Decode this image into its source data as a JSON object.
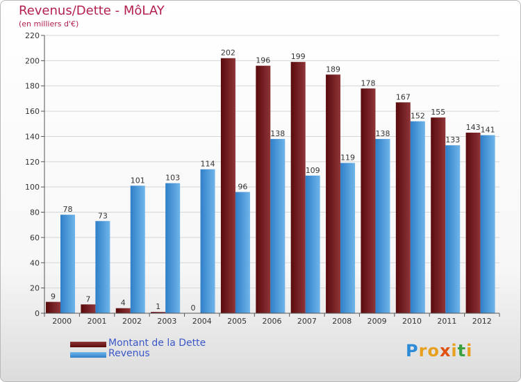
{
  "title": "Revenus/Dette - MôLAY",
  "subtitle": "(en milliers d'€)",
  "logo": {
    "text": "Proxiti",
    "letters": [
      "P",
      "r",
      "o",
      "x",
      "i",
      "t",
      "i"
    ],
    "colors": [
      "#2e8bd8",
      "#e8a020",
      "#e8a020",
      "#e05010",
      "#e8a020",
      "#3aa040",
      "#e8a020"
    ]
  },
  "legend": [
    {
      "label": "Montant de la Dette",
      "color": "#6b0f12"
    },
    {
      "label": "Revenus",
      "color": "#3a93d8"
    }
  ],
  "chart_data": {
    "type": "bar",
    "categories": [
      "2000",
      "2001",
      "2002",
      "2003",
      "2004",
      "2005",
      "2006",
      "2007",
      "2008",
      "2009",
      "2010",
      "2011",
      "2012"
    ],
    "series": [
      {
        "name": "Montant de la Dette",
        "color": "#6b0f12",
        "values": [
          9,
          7,
          4,
          1,
          0,
          202,
          196,
          199,
          189,
          178,
          167,
          155,
          143
        ]
      },
      {
        "name": "Revenus",
        "color": "#3a93d8",
        "values": [
          78,
          73,
          101,
          103,
          114,
          96,
          138,
          109,
          119,
          138,
          152,
          133,
          141
        ]
      }
    ],
    "ylim": [
      0,
      220
    ],
    "yticks": [
      0,
      20,
      40,
      60,
      80,
      100,
      120,
      140,
      160,
      180,
      200,
      220
    ],
    "grid": true
  }
}
